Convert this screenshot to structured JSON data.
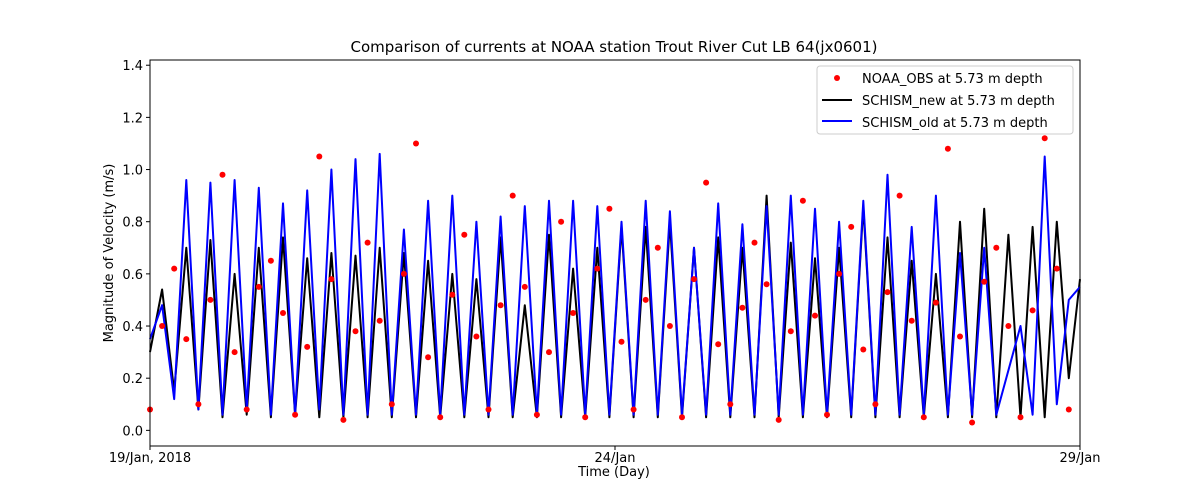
{
  "chart_data": {
    "type": "line",
    "title": "Comparison of currents at NOAA station Trout River Cut LB 64(jx0601)",
    "xlabel": "Time (Day)",
    "ylabel": "Magnitude of Velocity (m/s)",
    "xlim": [
      0,
      10
    ],
    "ylim": [
      -0.06,
      1.42
    ],
    "x_ticks": [
      {
        "value": 0,
        "label": "19/Jan, 2018"
      },
      {
        "value": 5,
        "label": "24/Jan"
      },
      {
        "value": 10,
        "label": "29/Jan"
      }
    ],
    "y_ticks": [
      {
        "value": 0.0,
        "label": "0.0"
      },
      {
        "value": 0.2,
        "label": "0.2"
      },
      {
        "value": 0.4,
        "label": "0.4"
      },
      {
        "value": 0.6,
        "label": "0.6"
      },
      {
        "value": 0.8,
        "label": "0.8"
      },
      {
        "value": 1.0,
        "label": "1.0"
      },
      {
        "value": 1.2,
        "label": "1.2"
      },
      {
        "value": 1.4,
        "label": "1.4"
      }
    ],
    "legend_position": "top-right",
    "series": [
      {
        "name": "NOAA_OBS at 5.73 m depth",
        "style": "markers",
        "color": "#ff0000",
        "x": [
          0.0,
          0.26,
          0.52,
          0.78,
          1.04,
          1.3,
          1.56,
          1.82,
          2.08,
          2.34,
          2.6,
          2.86,
          3.12,
          3.38,
          3.64,
          3.9,
          4.16,
          4.42,
          4.68,
          4.94,
          5.2,
          5.46,
          5.72,
          5.98,
          6.24,
          6.5,
          6.76,
          7.02,
          7.28,
          7.54,
          7.8,
          8.06,
          8.32,
          8.58,
          8.84,
          9.1,
          9.36,
          9.62,
          9.88,
          0.13,
          0.39,
          0.65,
          0.91,
          1.17,
          1.43,
          1.69,
          1.95,
          2.21,
          2.47,
          2.73,
          2.99,
          3.25,
          3.51,
          3.77,
          4.03,
          4.29,
          4.55,
          4.81,
          5.07,
          5.33,
          5.59,
          5.85,
          6.11,
          6.37,
          6.63,
          6.89,
          7.15,
          7.41,
          7.67,
          7.93,
          8.19,
          8.45,
          8.71,
          8.97,
          9.23,
          9.49,
          9.75
        ],
        "y": [
          0.08,
          0.62,
          0.1,
          0.98,
          0.08,
          0.65,
          0.06,
          1.05,
          0.04,
          0.72,
          0.1,
          1.1,
          0.05,
          0.75,
          0.08,
          0.9,
          0.06,
          0.8,
          0.05,
          0.85,
          0.08,
          0.7,
          0.05,
          0.95,
          0.1,
          0.72,
          0.04,
          0.88,
          0.06,
          0.78,
          0.1,
          0.9,
          0.05,
          1.08,
          0.03,
          0.7,
          0.05,
          1.12,
          0.08,
          0.4,
          0.35,
          0.5,
          0.3,
          0.55,
          0.45,
          0.32,
          0.58,
          0.38,
          0.42,
          0.6,
          0.28,
          0.52,
          0.36,
          0.48,
          0.55,
          0.3,
          0.45,
          0.62,
          0.34,
          0.5,
          0.4,
          0.58,
          0.33,
          0.47,
          0.56,
          0.38,
          0.44,
          0.6,
          0.31,
          0.53,
          0.42,
          0.49,
          0.36,
          0.57,
          0.4,
          0.46,
          0.62
        ]
      },
      {
        "name": "SCHISM_new at 5.73 m depth",
        "style": "line",
        "color": "#000000",
        "x": [
          0.0,
          0.13,
          0.26,
          0.39,
          0.52,
          0.65,
          0.78,
          0.91,
          1.04,
          1.17,
          1.3,
          1.43,
          1.56,
          1.69,
          1.82,
          1.95,
          2.08,
          2.21,
          2.34,
          2.47,
          2.6,
          2.73,
          2.86,
          2.99,
          3.12,
          3.25,
          3.38,
          3.51,
          3.64,
          3.77,
          3.9,
          4.03,
          4.16,
          4.29,
          4.42,
          4.55,
          4.68,
          4.81,
          4.94,
          5.07,
          5.2,
          5.33,
          5.46,
          5.59,
          5.72,
          5.85,
          5.98,
          6.11,
          6.24,
          6.37,
          6.5,
          6.63,
          6.76,
          6.89,
          7.02,
          7.15,
          7.28,
          7.41,
          7.54,
          7.67,
          7.8,
          7.93,
          8.06,
          8.19,
          8.32,
          8.45,
          8.58,
          8.71,
          8.84,
          8.97,
          9.1,
          9.23,
          9.36,
          9.49,
          9.62,
          9.75,
          9.88,
          10.0
        ],
        "y": [
          0.3,
          0.54,
          0.15,
          0.7,
          0.08,
          0.73,
          0.05,
          0.6,
          0.06,
          0.7,
          0.05,
          0.74,
          0.06,
          0.66,
          0.05,
          0.68,
          0.05,
          0.67,
          0.05,
          0.7,
          0.05,
          0.68,
          0.05,
          0.65,
          0.05,
          0.6,
          0.05,
          0.58,
          0.05,
          0.74,
          0.05,
          0.48,
          0.05,
          0.75,
          0.05,
          0.62,
          0.05,
          0.7,
          0.05,
          0.78,
          0.05,
          0.78,
          0.05,
          0.8,
          0.05,
          0.7,
          0.05,
          0.74,
          0.05,
          0.7,
          0.05,
          0.9,
          0.05,
          0.72,
          0.05,
          0.66,
          0.05,
          0.7,
          0.05,
          0.86,
          0.05,
          0.74,
          0.05,
          0.65,
          0.05,
          0.6,
          0.05,
          0.8,
          0.05,
          0.85,
          0.05,
          0.75,
          0.05,
          0.78,
          0.05,
          0.8,
          0.2,
          0.58
        ]
      },
      {
        "name": "SCHISM_old at 5.73 m depth",
        "style": "line",
        "color": "#0000ff",
        "x": [
          0.0,
          0.13,
          0.26,
          0.39,
          0.52,
          0.65,
          0.78,
          0.91,
          1.04,
          1.17,
          1.3,
          1.43,
          1.56,
          1.69,
          1.82,
          1.95,
          2.08,
          2.21,
          2.34,
          2.47,
          2.6,
          2.73,
          2.86,
          2.99,
          3.12,
          3.25,
          3.38,
          3.51,
          3.64,
          3.77,
          3.9,
          4.03,
          4.16,
          4.29,
          4.42,
          4.55,
          4.68,
          4.81,
          4.94,
          5.07,
          5.2,
          5.33,
          5.46,
          5.59,
          5.72,
          5.85,
          5.98,
          6.11,
          6.24,
          6.37,
          6.5,
          6.63,
          6.76,
          6.89,
          7.02,
          7.15,
          7.28,
          7.41,
          7.54,
          7.67,
          7.8,
          7.93,
          8.06,
          8.19,
          8.32,
          8.45,
          8.58,
          8.71,
          8.84,
          8.97,
          9.1,
          9.36,
          9.49,
          9.62,
          9.75,
          9.88,
          10.0
        ],
        "y": [
          0.35,
          0.48,
          0.12,
          0.96,
          0.08,
          0.95,
          0.06,
          0.96,
          0.08,
          0.93,
          0.06,
          0.87,
          0.06,
          0.92,
          0.08,
          1.0,
          0.06,
          1.04,
          0.06,
          1.06,
          0.06,
          0.77,
          0.06,
          0.88,
          0.06,
          0.9,
          0.06,
          0.8,
          0.06,
          0.82,
          0.06,
          0.86,
          0.06,
          0.88,
          0.06,
          0.88,
          0.06,
          0.86,
          0.06,
          0.8,
          0.06,
          0.88,
          0.06,
          0.84,
          0.06,
          0.7,
          0.06,
          0.87,
          0.06,
          0.79,
          0.06,
          0.86,
          0.06,
          0.9,
          0.06,
          0.85,
          0.06,
          0.8,
          0.06,
          0.88,
          0.06,
          0.98,
          0.06,
          0.78,
          0.06,
          0.9,
          0.06,
          0.68,
          0.06,
          0.7,
          0.06,
          0.4,
          0.06,
          1.05,
          0.1,
          0.5,
          0.55
        ]
      }
    ]
  }
}
